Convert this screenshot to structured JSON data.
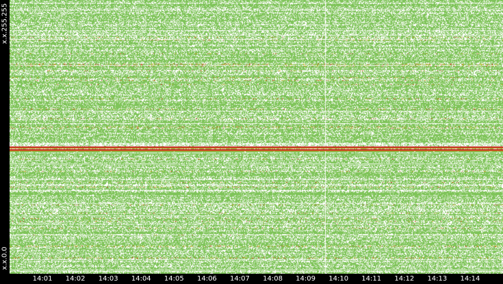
{
  "chart_data": {
    "type": "heatmap",
    "title": "",
    "xlabel": "",
    "ylabel": "",
    "y_range_labels": {
      "top": "x.x.255.255",
      "bottom": "x.x.0.0"
    },
    "x": [
      "14:01",
      "14:02",
      "14:03",
      "14:04",
      "14:05",
      "14:06",
      "14:07",
      "14:08",
      "14:09",
      "14:10",
      "14:11",
      "14:12",
      "14:13",
      "14:14"
    ],
    "xlim_minutes": [
      14.0,
      14.25
    ],
    "ylim": [
      0,
      65535
    ],
    "colors": {
      "background": "#ffffff",
      "low": "#7fc45a",
      "medium": "#b5bf2a",
      "high": "#d08a1c",
      "highest": "#c0281e",
      "frame": "#000000",
      "text": "#ffffff"
    },
    "highlight_bands": [
      {
        "y_fraction": 0.535,
        "color": "highest"
      },
      {
        "y_fraction": 0.545,
        "color": "highest"
      }
    ],
    "gap_time": "14:09.6",
    "grid": false,
    "legend": "none"
  }
}
